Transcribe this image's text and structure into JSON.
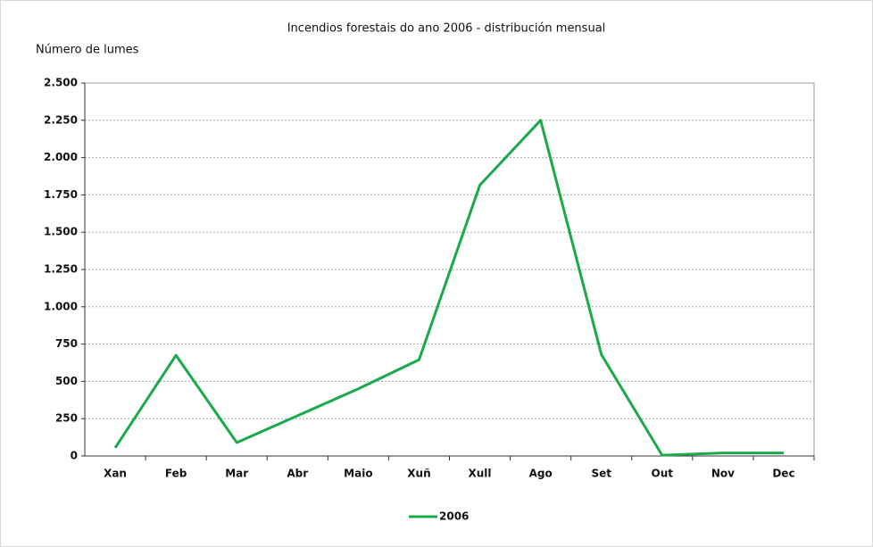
{
  "chart_data": {
    "type": "line",
    "title": "Incendios forestais do ano 2006 - distribución  mensual",
    "y_axis_label": "Número de lumes",
    "categories": [
      "Xan",
      "Feb",
      "Mar",
      "Abr",
      "Maio",
      "Xuñ",
      "Xull",
      "Ago",
      "Set",
      "Out",
      "Nov",
      "Dec"
    ],
    "series": [
      {
        "name": "2006",
        "color": "#1aaa4a",
        "values": [
          55,
          675,
          90,
          270,
          450,
          645,
          1815,
          2250,
          680,
          5,
          20,
          20
        ]
      }
    ],
    "ylim": [
      0,
      2500
    ],
    "yticks": [
      0,
      250,
      500,
      750,
      {
        "value": 1000,
        "label": "1.000"
      },
      {
        "value": 1250,
        "label": "1.250"
      },
      {
        "value": 1500,
        "label": "1.500"
      },
      {
        "value": 1750,
        "label": "1.750"
      },
      {
        "value": 2000,
        "label": "2.000"
      },
      {
        "value": 2250,
        "label": "2.250"
      },
      {
        "value": 2500,
        "label": "2.500"
      }
    ],
    "grid": true,
    "legend": "bottom"
  }
}
